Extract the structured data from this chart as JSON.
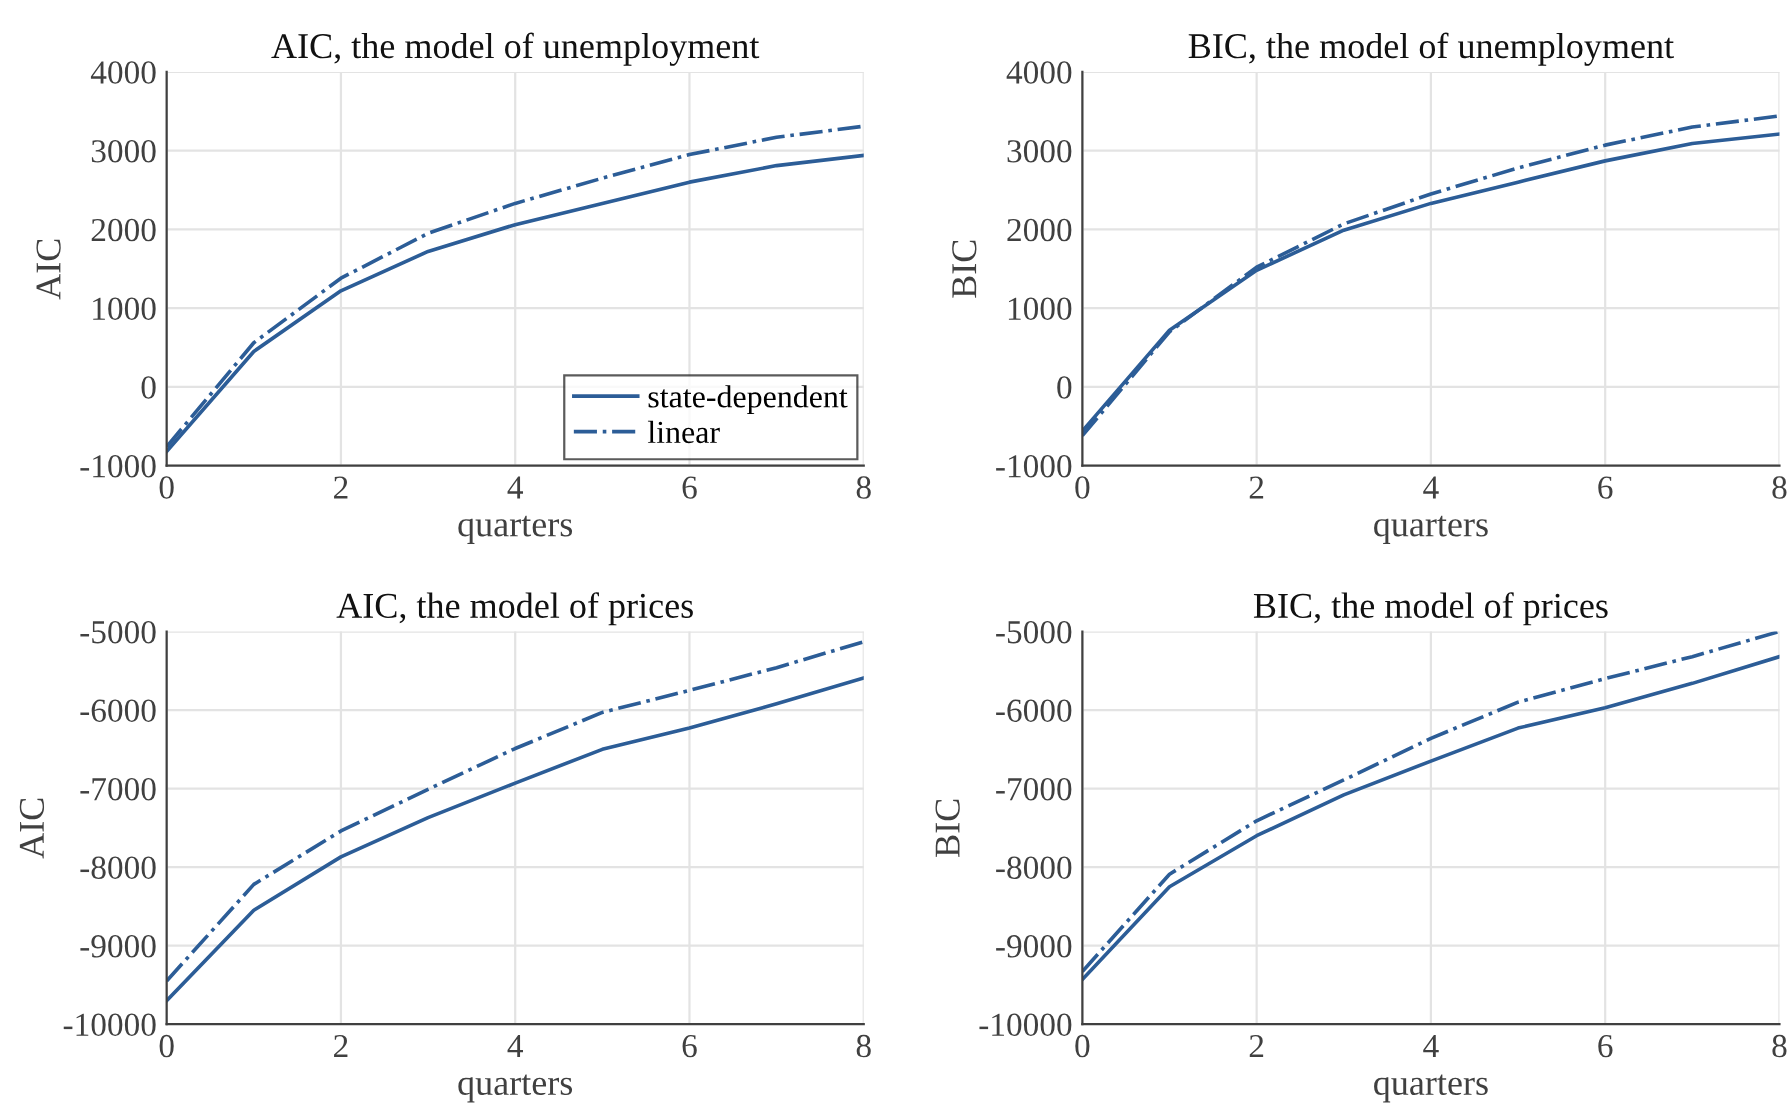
{
  "chart_data": [
    {
      "type": "line",
      "title": "AIC, the model of unemployment",
      "xlabel": "quarters",
      "ylabel": "AIC",
      "x": [
        0,
        1,
        2,
        3,
        4,
        5,
        6,
        7,
        8
      ],
      "xlim": [
        0,
        8
      ],
      "xticks": [
        0,
        2,
        4,
        6,
        8
      ],
      "ylim": [
        -1000,
        4000
      ],
      "yticks": [
        -1000,
        0,
        1000,
        2000,
        3000,
        4000
      ],
      "grid": true,
      "legend": "bottom right",
      "series": [
        {
          "name": "state-dependent",
          "color": "#2c5d97",
          "line_style": "solid",
          "values": [
            -820,
            450,
            1220,
            1720,
            2060,
            2330,
            2600,
            2810,
            2940
          ]
        },
        {
          "name": "linear",
          "color": "#2c5d97",
          "line_style": "dashdot",
          "values": [
            -760,
            560,
            1380,
            1950,
            2330,
            2650,
            2950,
            3170,
            3310
          ]
        }
      ]
    },
    {
      "type": "line",
      "title": "BIC, the model of unemployment",
      "xlabel": "quarters",
      "ylabel": "BIC",
      "x": [
        0,
        1,
        2,
        3,
        4,
        5,
        6,
        7,
        8
      ],
      "xlim": [
        0,
        8
      ],
      "xticks": [
        0,
        2,
        4,
        6,
        8
      ],
      "ylim": [
        -1000,
        4000
      ],
      "yticks": [
        -1000,
        0,
        1000,
        2000,
        3000,
        4000
      ],
      "grid": true,
      "series": [
        {
          "color": "#2c5d97",
          "line_style": "solid",
          "values": [
            -560,
            720,
            1480,
            1990,
            2330,
            2600,
            2870,
            3090,
            3210
          ]
        },
        {
          "color": "#2c5d97",
          "line_style": "dashdot",
          "values": [
            -620,
            700,
            1520,
            2070,
            2450,
            2780,
            3070,
            3300,
            3440
          ]
        }
      ]
    },
    {
      "type": "line",
      "title": "AIC, the model of prices",
      "xlabel": "quarters",
      "ylabel": "AIC",
      "x": [
        0,
        1,
        2,
        3,
        4,
        5,
        6,
        7,
        8
      ],
      "xlim": [
        0,
        8
      ],
      "xticks": [
        0,
        2,
        4,
        6,
        8
      ],
      "ylim": [
        -10000,
        -5000
      ],
      "yticks": [
        -10000,
        -9000,
        -8000,
        -7000,
        -6000,
        -5000
      ],
      "grid": true,
      "series": [
        {
          "color": "#2c5d97",
          "line_style": "solid",
          "values": [
            -9700,
            -8550,
            -7870,
            -7370,
            -6930,
            -6500,
            -6230,
            -5920,
            -5590
          ]
        },
        {
          "color": "#2c5d97",
          "line_style": "dashdot",
          "values": [
            -9450,
            -8220,
            -7540,
            -7010,
            -6490,
            -6030,
            -5750,
            -5460,
            -5130
          ]
        }
      ]
    },
    {
      "type": "line",
      "title": "BIC, the model of prices",
      "xlabel": "quarters",
      "ylabel": "BIC",
      "x": [
        0,
        1,
        2,
        3,
        4,
        5,
        6,
        7,
        8
      ],
      "xlim": [
        0,
        8
      ],
      "xticks": [
        0,
        2,
        4,
        6,
        8
      ],
      "ylim": [
        -10000,
        -5000
      ],
      "yticks": [
        -10000,
        -9000,
        -8000,
        -7000,
        -6000,
        -5000
      ],
      "grid": true,
      "series": [
        {
          "color": "#2c5d97",
          "line_style": "solid",
          "values": [
            -9430,
            -8250,
            -7600,
            -7080,
            -6650,
            -6230,
            -5970,
            -5660,
            -5320
          ]
        },
        {
          "color": "#2c5d97",
          "line_style": "dashdot",
          "values": [
            -9330,
            -8090,
            -7410,
            -6890,
            -6360,
            -5900,
            -5600,
            -5320,
            -5000
          ]
        }
      ]
    }
  ]
}
